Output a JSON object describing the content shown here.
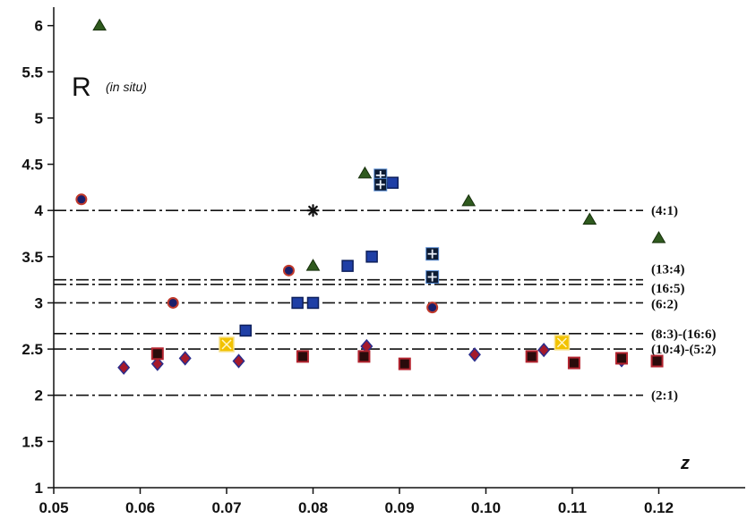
{
  "chart_data": {
    "type": "scatter",
    "title": "",
    "ylabel": "R",
    "ylabel_note": "(in situ)",
    "xlabel": "z",
    "xlim": [
      0.05,
      0.13
    ],
    "ylim": [
      1,
      6.2
    ],
    "x_ticks": [
      0.05,
      0.06,
      0.07,
      0.08,
      0.09,
      0.1,
      0.11,
      0.12
    ],
    "x_tick_labels": [
      "0.05",
      "0.06",
      "0.07",
      "0.08",
      "0.09",
      "0.10",
      "0.11",
      "0.12"
    ],
    "y_ticks": [
      1,
      1.5,
      2,
      2.5,
      3,
      3.5,
      4,
      4.5,
      5,
      5.5,
      6
    ],
    "y_tick_labels": [
      "1",
      "1.5",
      "2",
      "2.5",
      "3",
      "3.5",
      "4",
      "4.5",
      "5",
      "5.5",
      "6"
    ],
    "grid": false,
    "reference_lines": [
      {
        "y": 4.0,
        "label": "(4:1)"
      },
      {
        "y": 3.25,
        "label": "(13:4)"
      },
      {
        "y": 3.2,
        "label": "(16:5)"
      },
      {
        "y": 3.0,
        "label": "(6:2)"
      },
      {
        "y": 2.667,
        "label": "(8:3)-(16:6)"
      },
      {
        "y": 2.5,
        "label": "(10:4)-(5:2)"
      },
      {
        "y": 2.0,
        "label": "(2:1)"
      }
    ],
    "series": [
      {
        "marker": "triangle",
        "color": "#2f5a1e",
        "points": [
          [
            0.0553,
            6.0
          ],
          [
            0.08,
            3.4
          ],
          [
            0.086,
            4.4
          ],
          [
            0.098,
            4.1
          ],
          [
            0.112,
            3.9
          ],
          [
            0.12,
            3.7
          ]
        ]
      },
      {
        "marker": "circle",
        "color": "#1a1f6b",
        "edge": "#c0392b",
        "points": [
          [
            0.0532,
            4.12
          ],
          [
            0.0638,
            3.0
          ],
          [
            0.0772,
            3.35
          ],
          [
            0.0938,
            2.95
          ]
        ]
      },
      {
        "marker": "square",
        "color": "#1f3fa6",
        "edge": "#0d1f5c",
        "points": [
          [
            0.0722,
            2.7
          ],
          [
            0.0782,
            3.0
          ],
          [
            0.08,
            3.0
          ],
          [
            0.084,
            3.4
          ],
          [
            0.0868,
            3.5
          ],
          [
            0.0892,
            4.3
          ]
        ]
      },
      {
        "marker": "square-cross",
        "color": "#0d1b33",
        "edge": "#5b8fd6",
        "points": [
          [
            0.0878,
            4.38
          ],
          [
            0.0878,
            4.28
          ],
          [
            0.0938,
            3.53
          ],
          [
            0.0938,
            3.28
          ]
        ]
      },
      {
        "marker": "asterisk",
        "color": "#111111",
        "points": [
          [
            0.08,
            4.0
          ]
        ]
      },
      {
        "marker": "square-yellow",
        "color": "#f2c200",
        "edge": "#f6e08a",
        "points": [
          [
            0.07,
            2.55
          ],
          [
            0.1088,
            2.57
          ]
        ]
      },
      {
        "marker": "diamond",
        "color": "#a5192b",
        "edge": "#2b2d8c",
        "points": [
          [
            0.0581,
            2.3
          ],
          [
            0.062,
            2.34
          ],
          [
            0.0652,
            2.4
          ],
          [
            0.0714,
            2.37
          ],
          [
            0.0862,
            2.53
          ],
          [
            0.0987,
            2.44
          ],
          [
            0.1067,
            2.49
          ],
          [
            0.1157,
            2.38
          ]
        ]
      },
      {
        "marker": "square-dark",
        "color": "#2a0b0b",
        "edge": "#b3242f",
        "points": [
          [
            0.062,
            2.45
          ],
          [
            0.0788,
            2.42
          ],
          [
            0.0859,
            2.42
          ],
          [
            0.0906,
            2.34
          ],
          [
            0.1053,
            2.42
          ],
          [
            0.1102,
            2.35
          ],
          [
            0.1157,
            2.4
          ],
          [
            0.1198,
            2.37
          ]
        ]
      }
    ]
  }
}
